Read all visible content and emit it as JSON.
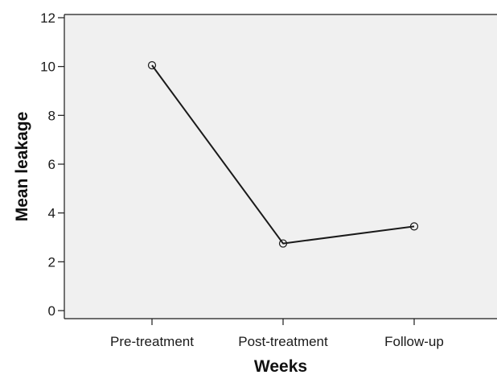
{
  "chart_data": {
    "type": "line",
    "title": "",
    "xlabel": "Weeks",
    "ylabel": "Mean leakage",
    "categories": [
      "Pre-treatment",
      "Post-treatment",
      "Follow-up"
    ],
    "series": [
      {
        "values": [
          10.05,
          2.75,
          3.45
        ]
      }
    ],
    "ylim": [
      0,
      12
    ],
    "yticks": [
      0,
      2,
      4,
      6,
      8,
      10,
      12
    ],
    "marker": "open-circle",
    "grid": false,
    "legend": "none",
    "colors": {
      "plot_background": "#f0f0f0",
      "line": "#1a1a1a",
      "axis": "#1a1a1a"
    }
  }
}
